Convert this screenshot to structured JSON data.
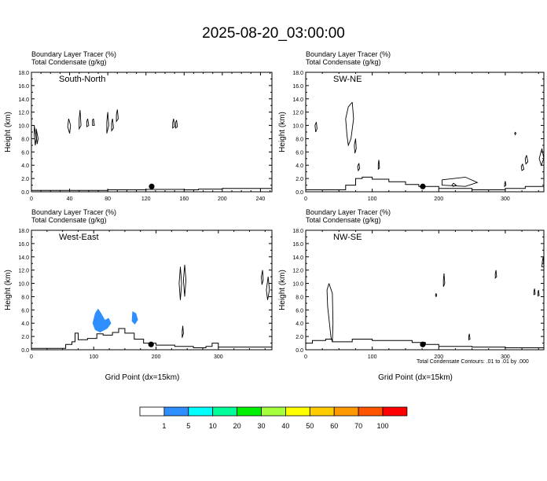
{
  "title": "2025-08-20_03:00:00",
  "footnote": "Total Condensate Contours: .01 to .01 by .000",
  "colorbar": {
    "colors": [
      "#ffffff",
      "#2f8fff",
      "#00ffff",
      "#00ff99",
      "#00ee00",
      "#a6ff3c",
      "#ffff00",
      "#ffcc00",
      "#ff9900",
      "#ff5500",
      "#ff0000"
    ],
    "labels": [
      "1",
      "5",
      "10",
      "20",
      "30",
      "40",
      "50",
      "60",
      "70",
      "100"
    ]
  },
  "chart_data": [
    {
      "type": "contour",
      "header_line1": "Boundary Layer Tracer   (%)",
      "header_line2": "Total Condensate   (g/kg)",
      "label": "South-North",
      "ylabel": "Height (km)",
      "xlabel": "",
      "xlim": [
        0,
        252
      ],
      "ylim": [
        0,
        18
      ],
      "xticks": [
        0,
        40,
        80,
        120,
        160,
        200,
        240
      ],
      "yticks": [
        0.0,
        2.0,
        4.0,
        6.0,
        8.0,
        10.0,
        12.0,
        14.0,
        16.0,
        18.0
      ],
      "marker": {
        "x": 126,
        "y": 0.8
      },
      "terrain": [
        [
          0,
          0.2
        ],
        [
          40,
          0.2
        ],
        [
          80,
          0.3
        ],
        [
          120,
          0.35
        ],
        [
          160,
          0.3
        ],
        [
          175,
          0.4
        ],
        [
          200,
          0.5
        ],
        [
          252,
          0.5
        ]
      ],
      "cloud_contours": [
        [
          [
            3,
            10
          ],
          [
            5,
            8
          ],
          [
            4,
            7
          ],
          [
            3,
            8.5
          ],
          [
            3,
            10
          ]
        ],
        [
          [
            5,
            9.5
          ],
          [
            7,
            8
          ],
          [
            6,
            7.2
          ],
          [
            5,
            8.5
          ],
          [
            5,
            9.5
          ]
        ],
        [
          [
            39,
            11
          ],
          [
            41,
            10
          ],
          [
            40,
            8.8
          ],
          [
            38,
            9.8
          ],
          [
            39,
            11
          ]
        ],
        [
          [
            51,
            12.3
          ],
          [
            52,
            10
          ],
          [
            50,
            9.5
          ],
          [
            50,
            11
          ],
          [
            51,
            12.3
          ]
        ],
        [
          [
            59,
            11
          ],
          [
            60,
            10
          ],
          [
            58,
            9.8
          ],
          [
            58,
            10.6
          ],
          [
            59,
            11
          ]
        ],
        [
          [
            65,
            11
          ],
          [
            66,
            10
          ],
          [
            64,
            10
          ],
          [
            64,
            10.8
          ],
          [
            65,
            11
          ]
        ],
        [
          [
            80,
            12
          ],
          [
            81,
            10
          ],
          [
            79,
            8.8
          ],
          [
            79,
            10.5
          ],
          [
            80,
            12
          ]
        ],
        [
          [
            85,
            11
          ],
          [
            86,
            9.6
          ],
          [
            84,
            9.2
          ],
          [
            84,
            10.4
          ],
          [
            85,
            11
          ]
        ],
        [
          [
            90,
            12.4
          ],
          [
            91,
            11
          ],
          [
            89,
            10.6
          ],
          [
            89,
            11.6
          ],
          [
            90,
            12.4
          ]
        ],
        [
          [
            149,
            11
          ],
          [
            150,
            9.8
          ],
          [
            148,
            9.6
          ],
          [
            148,
            10.4
          ],
          [
            149,
            11
          ]
        ],
        [
          [
            152,
            10.8
          ],
          [
            153,
            9.8
          ],
          [
            151,
            9.6
          ],
          [
            151,
            10.4
          ],
          [
            152,
            10.8
          ]
        ]
      ],
      "filled_regions": []
    },
    {
      "type": "contour",
      "header_line1": "Boundary Layer Tracer   (%)",
      "header_line2": "Total Condensate   (g/kg)",
      "label": "SW-NE",
      "ylabel": "Height (km)",
      "xlabel": "",
      "xlim": [
        0,
        358
      ],
      "ylim": [
        0,
        18
      ],
      "xticks": [
        0,
        100,
        200,
        300
      ],
      "yticks": [
        0.0,
        2.0,
        4.0,
        6.0,
        8.0,
        10.0,
        12.0,
        14.0,
        16.0,
        18.0
      ],
      "marker": {
        "x": 176,
        "y": 0.8
      },
      "terrain": [
        [
          0,
          0.3
        ],
        [
          40,
          0.3
        ],
        [
          60,
          1.0
        ],
        [
          75,
          2.0
        ],
        [
          85,
          2.2
        ],
        [
          100,
          1.9
        ],
        [
          125,
          1.5
        ],
        [
          150,
          1.1
        ],
        [
          170,
          0.8
        ],
        [
          200,
          0.5
        ],
        [
          250,
          0.3
        ],
        [
          300,
          0.5
        ],
        [
          330,
          0.8
        ],
        [
          358,
          1.0
        ]
      ],
      "cloud_contours": [
        [
          [
            70,
            13.5
          ],
          [
            72,
            11
          ],
          [
            68,
            8
          ],
          [
            64,
            7
          ],
          [
            62,
            8.5
          ],
          [
            60,
            11
          ],
          [
            64,
            12.8
          ],
          [
            70,
            13.5
          ]
        ],
        [
          [
            16,
            10.5
          ],
          [
            17,
            9.5
          ],
          [
            15,
            9
          ],
          [
            14,
            10
          ],
          [
            16,
            10.5
          ]
        ],
        [
          [
            75,
            8
          ],
          [
            76,
            6.5
          ],
          [
            74,
            5.8
          ],
          [
            73,
            7
          ],
          [
            75,
            8
          ]
        ],
        [
          [
            80,
            4.3
          ],
          [
            81,
            3.5
          ],
          [
            79,
            3.2
          ],
          [
            78,
            3.8
          ],
          [
            80,
            4.3
          ]
        ],
        [
          [
            110,
            4.8
          ],
          [
            111,
            3.6
          ],
          [
            109,
            3.4
          ],
          [
            109,
            4.2
          ],
          [
            110,
            4.8
          ]
        ],
        [
          [
            205,
            1.8
          ],
          [
            240,
            2.2
          ],
          [
            258,
            1.4
          ],
          [
            240,
            0.8
          ],
          [
            205,
            1.0
          ],
          [
            205,
            1.8
          ]
        ],
        [
          [
            222,
            1.3
          ],
          [
            226,
            1.0
          ],
          [
            222,
            0.8
          ],
          [
            220,
            1.0
          ],
          [
            222,
            1.3
          ]
        ],
        [
          [
            300,
            1.6
          ],
          [
            301,
            1.0
          ],
          [
            299,
            0.8
          ],
          [
            299,
            1.2
          ],
          [
            300,
            1.6
          ]
        ],
        [
          [
            326,
            4.2
          ],
          [
            328,
            3.4
          ],
          [
            325,
            3.2
          ],
          [
            324,
            3.8
          ],
          [
            326,
            4.2
          ]
        ],
        [
          [
            332,
            5.5
          ],
          [
            334,
            4.5
          ],
          [
            331,
            4.2
          ],
          [
            330,
            5
          ],
          [
            332,
            5.5
          ]
        ],
        [
          [
            355,
            6.5
          ],
          [
            358,
            5
          ],
          [
            354,
            4
          ],
          [
            351,
            5
          ],
          [
            355,
            6.5
          ]
        ],
        [
          [
            315,
            9
          ],
          [
            316,
            8.8
          ],
          [
            315,
            8.6
          ],
          [
            314,
            8.8
          ],
          [
            315,
            9
          ]
        ]
      ],
      "filled_regions": []
    },
    {
      "type": "contour",
      "header_line1": "Boundary Layer Tracer   (%)",
      "header_line2": "Total Condensate   (g/kg)",
      "label": "West-East",
      "ylabel": "Height (km)",
      "xlabel": "Grid Point (dx=15km)",
      "xlim": [
        0,
        386
      ],
      "ylim": [
        0,
        18
      ],
      "xticks": [
        0,
        100,
        200,
        300
      ],
      "yticks": [
        0.0,
        2.0,
        4.0,
        6.0,
        8.0,
        10.0,
        12.0,
        14.0,
        16.0,
        18.0
      ],
      "marker": {
        "x": 192,
        "y": 0.8
      },
      "terrain": [
        [
          0,
          0.2
        ],
        [
          40,
          0.2
        ],
        [
          55,
          0.8
        ],
        [
          65,
          1.2
        ],
        [
          70,
          2.5
        ],
        [
          75,
          1.5
        ],
        [
          90,
          1.7
        ],
        [
          105,
          2.4
        ],
        [
          115,
          2.2
        ],
        [
          130,
          2.6
        ],
        [
          140,
          3.2
        ],
        [
          150,
          2.5
        ],
        [
          165,
          1.6
        ],
        [
          180,
          1.0
        ],
        [
          200,
          0.7
        ],
        [
          230,
          0.5
        ],
        [
          260,
          0.3
        ],
        [
          280,
          0.5
        ],
        [
          290,
          1.0
        ],
        [
          300,
          0.4
        ],
        [
          386,
          0.4
        ]
      ],
      "cloud_contours": [
        [
          [
            239,
            12.5
          ],
          [
            241,
            10
          ],
          [
            239,
            7.5
          ],
          [
            237,
            10
          ],
          [
            239,
            12.5
          ]
        ],
        [
          [
            246,
            12.8
          ],
          [
            248,
            10.5
          ],
          [
            246,
            8
          ],
          [
            244,
            10.5
          ],
          [
            246,
            12.8
          ]
        ],
        [
          [
            243,
            3.6
          ],
          [
            244,
            2.5
          ],
          [
            242,
            1.8
          ],
          [
            242,
            2.8
          ],
          [
            243,
            3.6
          ]
        ],
        [
          [
            371,
            12
          ],
          [
            372,
            10.5
          ],
          [
            370,
            9.8
          ],
          [
            369,
            11
          ],
          [
            371,
            12
          ]
        ],
        [
          [
            380,
            11
          ],
          [
            382,
            9
          ],
          [
            379,
            7.5
          ],
          [
            377,
            9
          ],
          [
            380,
            11
          ]
        ]
      ],
      "filled_regions": [
        [
          [
            102,
            5.5
          ],
          [
            107,
            6.2
          ],
          [
            112,
            5.5
          ],
          [
            118,
            4.5
          ],
          [
            124,
            4.8
          ],
          [
            128,
            4.0
          ],
          [
            122,
            3.2
          ],
          [
            110,
            2.6
          ],
          [
            102,
            3.0
          ],
          [
            98,
            4.0
          ],
          [
            102,
            5.5
          ]
        ],
        [
          [
            162,
            5.8
          ],
          [
            168,
            5.5
          ],
          [
            171,
            4.5
          ],
          [
            166,
            3.8
          ],
          [
            161,
            4.3
          ],
          [
            162,
            5.8
          ]
        ]
      ]
    },
    {
      "type": "contour",
      "header_line1": "Boundary Layer Tracer   (%)",
      "header_line2": "Total Condensate   (g/kg)",
      "label": "NW-SE",
      "ylabel": "Height (km)",
      "xlabel": "Grid Point (dx=15km)",
      "xlim": [
        0,
        358
      ],
      "ylim": [
        0,
        18
      ],
      "xticks": [
        0,
        100,
        200,
        300
      ],
      "yticks": [
        0.0,
        2.0,
        4.0,
        6.0,
        8.0,
        10.0,
        12.0,
        14.0,
        16.0,
        18.0
      ],
      "marker": {
        "x": 176,
        "y": 0.8
      },
      "terrain": [
        [
          0,
          1.0
        ],
        [
          10,
          1.4
        ],
        [
          30,
          1.6
        ],
        [
          40,
          1.2
        ],
        [
          70,
          1.6
        ],
        [
          100,
          1.4
        ],
        [
          130,
          1.4
        ],
        [
          160,
          1.1
        ],
        [
          180,
          0.8
        ],
        [
          200,
          0.5
        ],
        [
          250,
          0.4
        ],
        [
          300,
          0.3
        ],
        [
          358,
          0.3
        ]
      ],
      "cloud_contours": [
        [
          [
            35,
            10
          ],
          [
            40,
            8.5
          ],
          [
            41,
            4
          ],
          [
            40,
            1.2
          ],
          [
            38,
            1.8
          ],
          [
            33,
            6.5
          ],
          [
            32,
            9
          ],
          [
            35,
            10
          ]
        ],
        [
          [
            208,
            11.5
          ],
          [
            209,
            10
          ],
          [
            207,
            9.5
          ],
          [
            207,
            10.5
          ],
          [
            208,
            11.5
          ]
        ],
        [
          [
            196,
            8.5
          ],
          [
            197,
            8.2
          ],
          [
            196,
            8.0
          ],
          [
            195,
            8.2
          ],
          [
            196,
            8.5
          ]
        ],
        [
          [
            286,
            12
          ],
          [
            287,
            11
          ],
          [
            285,
            10.8
          ],
          [
            285,
            11.5
          ],
          [
            286,
            12
          ]
        ],
        [
          [
            246,
            2.4
          ],
          [
            247,
            1.6
          ],
          [
            245,
            1.5
          ],
          [
            245,
            2.0
          ],
          [
            246,
            2.4
          ]
        ],
        [
          [
            344,
            9.2
          ],
          [
            345,
            8.4
          ],
          [
            343,
            8.3
          ],
          [
            343,
            8.8
          ],
          [
            344,
            9.2
          ]
        ],
        [
          [
            350,
            9
          ],
          [
            351,
            8.2
          ],
          [
            349,
            8.1
          ],
          [
            349,
            8.6
          ],
          [
            350,
            9
          ]
        ],
        [
          [
            357,
            14
          ],
          [
            358,
            12.5
          ],
          [
            355,
            12.5
          ],
          [
            356,
            13.5
          ],
          [
            357,
            14
          ]
        ]
      ],
      "filled_regions": []
    }
  ]
}
